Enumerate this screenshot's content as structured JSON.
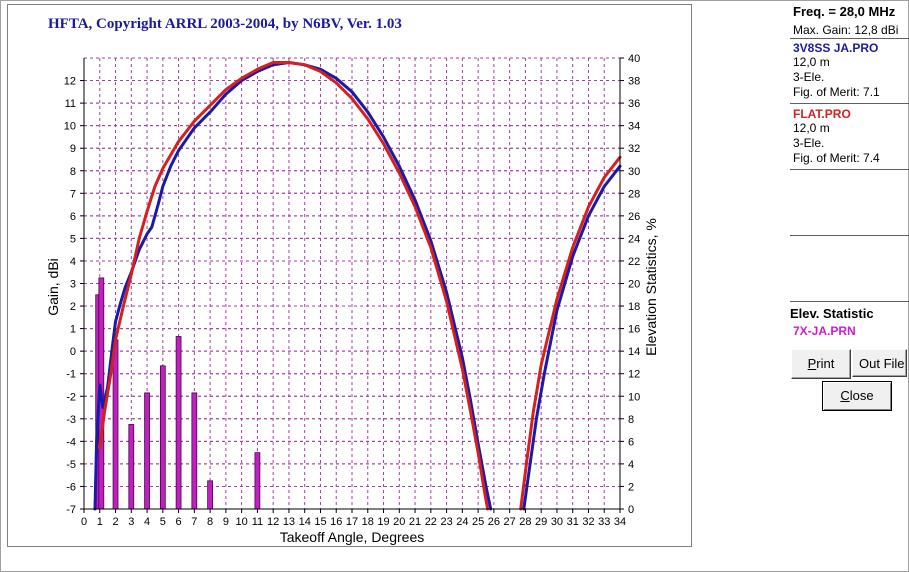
{
  "window": {
    "title": "HFTA, Copyright ARRL 2003-2004, by N6BV, Ver. 1.03"
  },
  "side_panel": {
    "freq_label": "Freq. = 28,0 MHz",
    "max_gain_label": "Max. Gain: 12,8 dBi",
    "antennas": [
      {
        "name": "3V8SS JA.PRO",
        "height": "12,0 m",
        "type": "3-Ele.",
        "merit": "Fig. of Merit:  7.1",
        "color": "#1a1aa8"
      },
      {
        "name": "FLAT.PRO",
        "height": "12,0 m",
        "type": "3-Ele.",
        "merit": "Fig. of Merit:  7.4",
        "color": "#d42020"
      }
    ],
    "elev_title": "Elev. Statistic",
    "elev_file": "7X-JA.PRN",
    "buttons": {
      "print": "Print",
      "out_file": "Out File",
      "close": "Close"
    }
  },
  "chart_data": {
    "type": "line",
    "title": "HFTA, Copyright ARRL 2003-2004, by N6BV, Ver. 1.03",
    "xlabel": "Takeoff Angle, Degrees",
    "ylabel": "Gain, dBi",
    "y2label": "Elevation Statistics, %",
    "xlim": [
      0,
      34
    ],
    "ylim": [
      -7,
      13
    ],
    "y2lim": [
      0,
      40
    ],
    "x_ticks": [
      0,
      1,
      2,
      3,
      4,
      5,
      6,
      7,
      8,
      9,
      10,
      11,
      12,
      13,
      14,
      15,
      16,
      17,
      18,
      19,
      20,
      21,
      22,
      23,
      24,
      25,
      26,
      27,
      28,
      29,
      30,
      31,
      32,
      33,
      34
    ],
    "y_ticks": [
      -7,
      -6,
      -5,
      -4,
      -3,
      -2,
      -1,
      0,
      1,
      2,
      3,
      4,
      5,
      6,
      7,
      8,
      9,
      10,
      11,
      12
    ],
    "y2_ticks": [
      0,
      2,
      4,
      6,
      8,
      10,
      12,
      14,
      16,
      18,
      20,
      22,
      24,
      26,
      28,
      30,
      32,
      34,
      36,
      38,
      40
    ],
    "grid": true,
    "series": [
      {
        "name": "3V8SS JA.PRO",
        "color": "#1a1aa8",
        "points": [
          [
            0.7,
            -7
          ],
          [
            0.8,
            -4
          ],
          [
            1.0,
            -1.5
          ],
          [
            1.2,
            -2.5
          ],
          [
            1.5,
            -1.6
          ],
          [
            1.8,
            0.2
          ],
          [
            2,
            1.3
          ],
          [
            2.3,
            2.1
          ],
          [
            2.6,
            2.8
          ],
          [
            3,
            3.5
          ],
          [
            3.5,
            4.5
          ],
          [
            4,
            5.2
          ],
          [
            4.3,
            5.5
          ],
          [
            4.7,
            6.5
          ],
          [
            5,
            7.3
          ],
          [
            5.5,
            8.2
          ],
          [
            6,
            8.9
          ],
          [
            6.5,
            9.4
          ],
          [
            7,
            9.9
          ],
          [
            8,
            10.6
          ],
          [
            9,
            11.4
          ],
          [
            10,
            12
          ],
          [
            11,
            12.4
          ],
          [
            12,
            12.7
          ],
          [
            13,
            12.8
          ],
          [
            14,
            12.7
          ],
          [
            15,
            12.5
          ],
          [
            16,
            12.1
          ],
          [
            17,
            11.5
          ],
          [
            18,
            10.6
          ],
          [
            19,
            9.5
          ],
          [
            20,
            8.2
          ],
          [
            21,
            6.7
          ],
          [
            22,
            4.9
          ],
          [
            23,
            2.6
          ],
          [
            24,
            -0.3
          ],
          [
            24.5,
            -2.1
          ],
          [
            25,
            -4.1
          ],
          [
            25.5,
            -6
          ],
          [
            25.8,
            -7
          ]
        ]
      },
      {
        "name": "3V8SS JA.PRO upper lobe",
        "color": "#1a1aa8",
        "points": [
          [
            27.9,
            -7
          ],
          [
            28.3,
            -5
          ],
          [
            28.7,
            -3
          ],
          [
            29.2,
            -1
          ],
          [
            30,
            1.8
          ],
          [
            31,
            4.2
          ],
          [
            32,
            6
          ],
          [
            33,
            7.3
          ],
          [
            34,
            8.2
          ]
        ]
      },
      {
        "name": "FLAT.PRO",
        "color": "#d42020",
        "points": [
          [
            1.0,
            -4.3
          ],
          [
            1.3,
            -2.7
          ],
          [
            1.7,
            -1
          ],
          [
            2,
            0.5
          ],
          [
            2.5,
            2
          ],
          [
            3,
            3.4
          ],
          [
            3.5,
            5
          ],
          [
            4,
            6.2
          ],
          [
            4.5,
            7.3
          ],
          [
            5,
            8.1
          ],
          [
            6,
            9.3
          ],
          [
            7,
            10.2
          ],
          [
            8,
            10.9
          ],
          [
            9,
            11.6
          ],
          [
            10,
            12.1
          ],
          [
            11,
            12.5
          ],
          [
            12,
            12.8
          ],
          [
            13,
            12.8
          ],
          [
            14,
            12.7
          ],
          [
            15,
            12.4
          ],
          [
            16,
            11.9
          ],
          [
            17,
            11.2
          ],
          [
            18,
            10.3
          ],
          [
            19,
            9.2
          ],
          [
            20,
            7.9
          ],
          [
            21,
            6.4
          ],
          [
            22,
            4.6
          ],
          [
            23,
            2.2
          ],
          [
            24,
            -0.8
          ],
          [
            24.5,
            -2.6
          ],
          [
            25,
            -4.5
          ],
          [
            25.4,
            -6.2
          ],
          [
            25.6,
            -7
          ]
        ]
      },
      {
        "name": "FLAT.PRO upper lobe",
        "color": "#d42020",
        "points": [
          [
            27.7,
            -7
          ],
          [
            28.1,
            -4.8
          ],
          [
            28.5,
            -2.7
          ],
          [
            29,
            -0.6
          ],
          [
            30,
            2.3
          ],
          [
            31,
            4.6
          ],
          [
            32,
            6.4
          ],
          [
            33,
            7.7
          ],
          [
            34,
            8.6
          ]
        ]
      }
    ],
    "elevation_statistics": {
      "name": "7X-JA.PRN",
      "color": "#c020c0",
      "bars": [
        {
          "x": 0.9,
          "value": 19
        },
        {
          "x": 1.1,
          "value": 20.5
        },
        {
          "x": 2.0,
          "value": 15
        },
        {
          "x": 3.0,
          "value": 7.5
        },
        {
          "x": 4.0,
          "value": 10.3
        },
        {
          "x": 5.0,
          "value": 12.7
        },
        {
          "x": 6.0,
          "value": 15.3
        },
        {
          "x": 7.0,
          "value": 10.3
        },
        {
          "x": 8.0,
          "value": 2.5
        },
        {
          "x": 11.0,
          "value": 5
        }
      ]
    }
  }
}
